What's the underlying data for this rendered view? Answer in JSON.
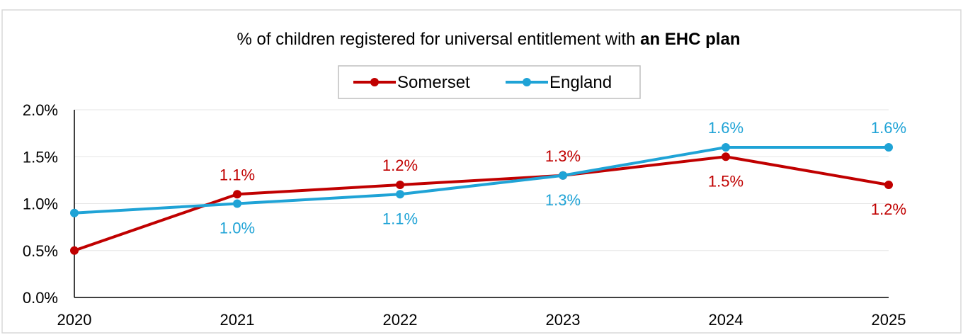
{
  "chart_data": {
    "type": "line",
    "title": {
      "prefix": "% of children registered for universal entitlement with ",
      "emphasis": "an EHC plan"
    },
    "categories": [
      "2020",
      "2021",
      "2022",
      "2023",
      "2024",
      "2025"
    ],
    "y_tick_labels": [
      "0.0%",
      "0.5%",
      "1.0%",
      "1.5%",
      "2.0%"
    ],
    "ylim": [
      0,
      2.0
    ],
    "y_unit": "%",
    "grid": true,
    "legend_position": "top-center",
    "series": [
      {
        "name": "Somerset",
        "color": "#C00000",
        "values": [
          0.5,
          1.1,
          1.2,
          1.3,
          1.5,
          1.2
        ],
        "labels": [
          "",
          "1.1%",
          "1.2%",
          "1.3%",
          "1.5%",
          "1.2%"
        ],
        "label_side": [
          "above",
          "above",
          "above",
          "above",
          "below",
          "below"
        ]
      },
      {
        "name": "England",
        "color": "#1FA3D6",
        "values": [
          0.9,
          1.0,
          1.1,
          1.3,
          1.6,
          1.6
        ],
        "labels": [
          "",
          "1.0%",
          "1.1%",
          "1.3%",
          "1.6%",
          "1.6%"
        ],
        "label_side": [
          "above",
          "below",
          "below",
          "below",
          "above",
          "above"
        ]
      }
    ]
  }
}
